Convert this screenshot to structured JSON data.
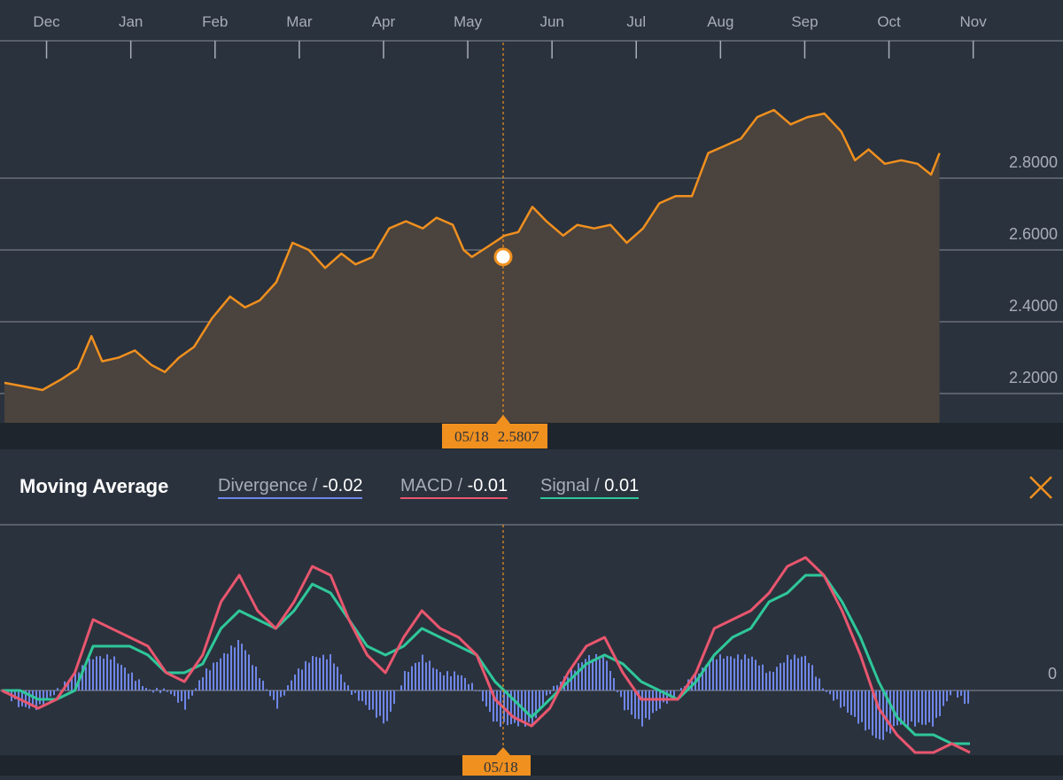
{
  "tooltip": {
    "date": "05/18",
    "value": "2.5807"
  },
  "panel": {
    "title": "Moving Average",
    "divergence": {
      "label": "Divergence",
      "value": "-0.02",
      "color": "#6f86e8"
    },
    "macd": {
      "label": "MACD",
      "value": "-0.01",
      "color": "#e8566e"
    },
    "signal": {
      "label": "Signal",
      "value": "0.01",
      "color": "#2fc79a"
    },
    "separator": "/"
  },
  "colors": {
    "price_line": "#f0901f",
    "price_fill": "#4b433d",
    "background": "#2a323d",
    "grid": "#8a8f97"
  },
  "icons": {
    "close": "close-icon"
  },
  "chart_data": [
    {
      "type": "area",
      "x_months": [
        "Dec",
        "Jan",
        "Feb",
        "Mar",
        "Apr",
        "May",
        "Jun",
        "Jul",
        "Aug",
        "Sep",
        "Oct",
        "Nov"
      ],
      "y_ticks": [
        "2.2000",
        "2.4000",
        "2.6000",
        "2.8000"
      ],
      "ylim": [
        2.12,
        3.0
      ],
      "crosshair": {
        "date": "05/18",
        "value": 2.5807
      },
      "series": [
        {
          "points": [
            [
              "Dec 1",
              2.23
            ],
            [
              "Dec 8",
              2.22
            ],
            [
              "Dec 15",
              2.21
            ],
            [
              "Dec 22",
              2.24
            ],
            [
              "Dec 28",
              2.27
            ],
            [
              "Jan 2",
              2.36
            ],
            [
              "Jan 6",
              2.29
            ],
            [
              "Jan 12",
              2.3
            ],
            [
              "Jan 18",
              2.32
            ],
            [
              "Jan 24",
              2.28
            ],
            [
              "Jan 29",
              2.26
            ],
            [
              "Feb 3",
              2.3
            ],
            [
              "Feb 8",
              2.33
            ],
            [
              "Feb 14",
              2.41
            ],
            [
              "Feb 20",
              2.47
            ],
            [
              "Feb 25",
              2.44
            ],
            [
              "Mar 2",
              2.46
            ],
            [
              "Mar 8",
              2.51
            ],
            [
              "Mar 14",
              2.62
            ],
            [
              "Mar 20",
              2.6
            ],
            [
              "Mar 26",
              2.55
            ],
            [
              "Apr 1",
              2.59
            ],
            [
              "Apr 6",
              2.56
            ],
            [
              "Apr 12",
              2.58
            ],
            [
              "Apr 18",
              2.66
            ],
            [
              "Apr 24",
              2.68
            ],
            [
              "Apr 30",
              2.66
            ],
            [
              "May 5",
              2.69
            ],
            [
              "May 11",
              2.67
            ],
            [
              "May 15",
              2.6
            ],
            [
              "May 18",
              2.5807
            ],
            [
              "May 24",
              2.61
            ],
            [
              "May 30",
              2.64
            ],
            [
              "Jun 4",
              2.65
            ],
            [
              "Jun 9",
              2.72
            ],
            [
              "Jun 14",
              2.68
            ],
            [
              "Jun 20",
              2.64
            ],
            [
              "Jun 25",
              2.67
            ],
            [
              "Jul 1",
              2.66
            ],
            [
              "Jul 7",
              2.67
            ],
            [
              "Jul 13",
              2.62
            ],
            [
              "Jul 19",
              2.66
            ],
            [
              "Jul 25",
              2.73
            ],
            [
              "Jul 31",
              2.75
            ],
            [
              "Aug 6",
              2.75
            ],
            [
              "Aug 12",
              2.87
            ],
            [
              "Aug 18",
              2.89
            ],
            [
              "Aug 24",
              2.91
            ],
            [
              "Aug 30",
              2.97
            ],
            [
              "Sep 5",
              2.99
            ],
            [
              "Sep 11",
              2.95
            ],
            [
              "Sep 17",
              2.97
            ],
            [
              "Sep 23",
              2.98
            ],
            [
              "Sep 29",
              2.93
            ],
            [
              "Oct 4",
              2.85
            ],
            [
              "Oct 9",
              2.88
            ],
            [
              "Oct 15",
              2.84
            ],
            [
              "Oct 21",
              2.85
            ],
            [
              "Oct 27",
              2.84
            ],
            [
              "Nov 1",
              2.81
            ],
            [
              "Nov 4",
              2.87
            ]
          ]
        }
      ]
    },
    {
      "type": "line",
      "title": "Moving Average",
      "y_ticks": [
        "0"
      ],
      "ylim": [
        -0.08,
        0.175
      ],
      "series": [
        {
          "name": "MACD",
          "values": [
            0.0,
            -0.01,
            -0.02,
            -0.01,
            0.02,
            0.08,
            0.07,
            0.06,
            0.05,
            0.02,
            0.01,
            0.04,
            0.1,
            0.13,
            0.09,
            0.07,
            0.1,
            0.14,
            0.13,
            0.08,
            0.04,
            0.02,
            0.06,
            0.09,
            0.07,
            0.06,
            0.04,
            -0.01,
            -0.03,
            -0.04,
            -0.02,
            0.02,
            0.05,
            0.06,
            0.02,
            -0.01,
            -0.01,
            -0.01,
            0.02,
            0.07,
            0.08,
            0.09,
            0.11,
            0.14,
            0.15,
            0.13,
            0.09,
            0.04,
            -0.02,
            -0.05,
            -0.07,
            -0.07,
            -0.06,
            -0.07
          ]
        },
        {
          "name": "Signal",
          "values": [
            0.0,
            0.0,
            -0.01,
            -0.01,
            0.0,
            0.05,
            0.05,
            0.05,
            0.04,
            0.02,
            0.02,
            0.03,
            0.07,
            0.09,
            0.08,
            0.07,
            0.09,
            0.12,
            0.11,
            0.08,
            0.05,
            0.04,
            0.05,
            0.07,
            0.06,
            0.05,
            0.04,
            0.01,
            -0.01,
            -0.03,
            -0.01,
            0.01,
            0.03,
            0.04,
            0.03,
            0.01,
            0.0,
            -0.01,
            0.01,
            0.04,
            0.06,
            0.07,
            0.1,
            0.11,
            0.13,
            0.13,
            0.1,
            0.06,
            0.01,
            -0.03,
            -0.05,
            -0.05,
            -0.06,
            -0.06
          ]
        },
        {
          "name": "Divergence",
          "values": [
            0.0,
            -0.01,
            -0.01,
            0.0,
            0.01,
            0.02,
            0.02,
            0.01,
            0.0,
            0.0,
            -0.01,
            0.01,
            0.02,
            0.03,
            0.01,
            -0.01,
            0.01,
            0.02,
            0.02,
            0.0,
            -0.01,
            -0.02,
            0.01,
            0.02,
            0.01,
            0.01,
            0.0,
            -0.02,
            -0.02,
            -0.02,
            0.0,
            0.01,
            0.02,
            0.02,
            -0.01,
            -0.02,
            -0.01,
            0.0,
            0.01,
            0.02,
            0.02,
            0.02,
            0.01,
            0.02,
            0.02,
            0.0,
            -0.01,
            -0.02,
            -0.03,
            -0.02,
            -0.02,
            -0.02,
            0.0,
            -0.01
          ]
        }
      ]
    }
  ]
}
